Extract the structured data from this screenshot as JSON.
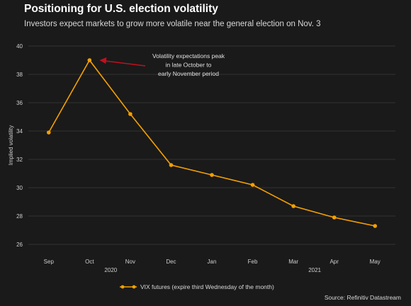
{
  "title": "Positioning for U.S. election volatility",
  "subtitle": "Investors expect markets to grow more volatile near the general election on Nov. 3",
  "source": "Source: Refinitiv Datastream",
  "annotation": [
    "Volatility expectations peak",
    "in late October to",
    "early November period"
  ],
  "colors": {
    "series": "#f5a000",
    "annotation_arrow": "#c0101e",
    "background": "#1a1a1a"
  },
  "chart_data": {
    "type": "line",
    "title": "",
    "xlabel": "",
    "ylabel": "Implied volatility",
    "categories": [
      "Sep",
      "Oct",
      "Nov",
      "Dec",
      "Jan",
      "Feb",
      "Mar",
      "Apr",
      "May"
    ],
    "year_labels": [
      {
        "under": "Oct",
        "text": "2020"
      },
      {
        "under": "Mar",
        "text": "2021"
      }
    ],
    "series": [
      {
        "name": "VIX futures (expire third Wednesday of the month)",
        "values": [
          33.9,
          39.0,
          35.2,
          31.6,
          30.9,
          30.2,
          28.7,
          27.9,
          27.3
        ]
      }
    ],
    "ylim": [
      26,
      40
    ],
    "yticks": [
      26,
      28,
      30,
      32,
      34,
      36,
      38,
      40
    ],
    "grid": true,
    "legend_position": "bottom-left"
  }
}
